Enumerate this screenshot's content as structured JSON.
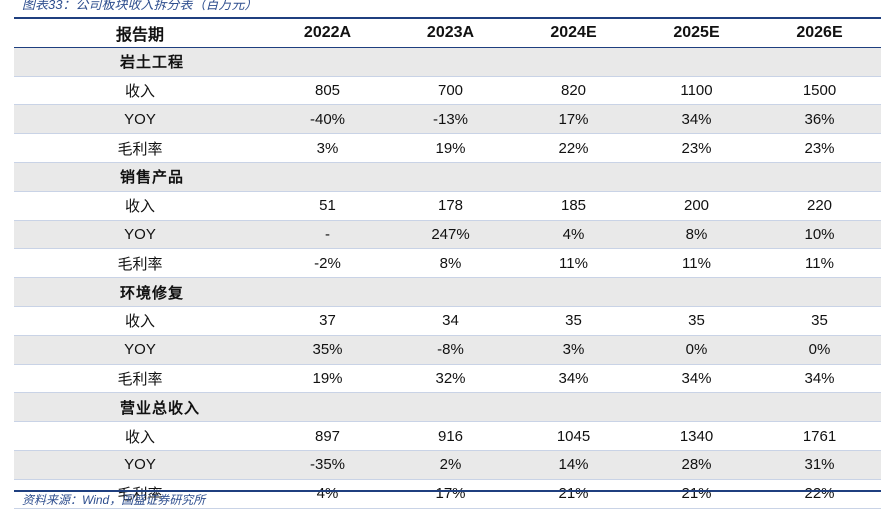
{
  "caption": "图表33：公司板块收入拆分表（百万元）",
  "header": [
    "报告期",
    "2022A",
    "2023A",
    "2024E",
    "2025E",
    "2026E"
  ],
  "sections": [
    {
      "name": "岩土工程",
      "rows": [
        {
          "label": "收入",
          "values": [
            "805",
            "700",
            "820",
            "1100",
            "1500"
          ]
        },
        {
          "label": "YOY",
          "values": [
            "-40%",
            "-13%",
            "17%",
            "34%",
            "36%"
          ]
        },
        {
          "label": "毛利率",
          "values": [
            "3%",
            "19%",
            "22%",
            "23%",
            "23%"
          ]
        }
      ]
    },
    {
      "name": "销售产品",
      "rows": [
        {
          "label": "收入",
          "values": [
            "51",
            "178",
            "185",
            "200",
            "220"
          ]
        },
        {
          "label": "YOY",
          "values": [
            "-",
            "247%",
            "4%",
            "8%",
            "10%"
          ]
        },
        {
          "label": "毛利率",
          "values": [
            "-2%",
            "8%",
            "11%",
            "11%",
            "11%"
          ]
        }
      ]
    },
    {
      "name": "环境修复",
      "rows": [
        {
          "label": "收入",
          "values": [
            "37",
            "34",
            "35",
            "35",
            "35"
          ]
        },
        {
          "label": "YOY",
          "values": [
            "35%",
            "-8%",
            "3%",
            "0%",
            "0%"
          ]
        },
        {
          "label": "毛利率",
          "values": [
            "19%",
            "32%",
            "34%",
            "34%",
            "34%"
          ]
        }
      ]
    },
    {
      "name": "营业总收入",
      "rows": [
        {
          "label": "收入",
          "values": [
            "897",
            "916",
            "1045",
            "1340",
            "1761"
          ]
        },
        {
          "label": "YOY",
          "values": [
            "-35%",
            "2%",
            "14%",
            "28%",
            "31%"
          ]
        },
        {
          "label": "毛利率",
          "values": [
            "4%",
            "17%",
            "21%",
            "21%",
            "22%"
          ]
        }
      ]
    }
  ],
  "source": "资料来源：Wind，国盛证券研究所"
}
